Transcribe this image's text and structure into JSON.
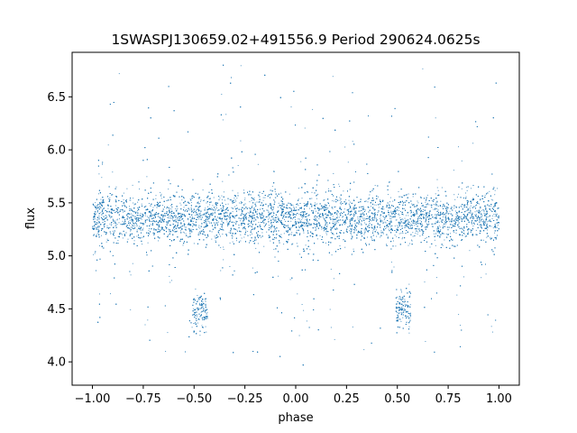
{
  "chart_data": {
    "type": "scatter",
    "title": "1SWASPJ130659.02+491556.9 Period 290624.0625s",
    "xlabel": "phase",
    "ylabel": "flux",
    "xlim": [
      -1.1,
      1.1
    ],
    "ylim": [
      3.78,
      6.92
    ],
    "x_ticks": [
      -1.0,
      -0.75,
      -0.5,
      -0.25,
      0.0,
      0.25,
      0.5,
      0.75,
      1.0
    ],
    "x_tick_labels": [
      "−1.00",
      "−0.75",
      "−0.50",
      "−0.25",
      "0.00",
      "0.25",
      "0.50",
      "0.75",
      "1.00"
    ],
    "y_ticks": [
      4.0,
      4.5,
      5.0,
      5.5,
      6.0,
      6.5
    ],
    "y_tick_labels": [
      "4.0",
      "4.5",
      "5.0",
      "5.5",
      "6.0",
      "6.5"
    ],
    "grid": false,
    "legend": "none",
    "marker_color": "#1f77b4",
    "series": [
      {
        "baseline_flux": 5.35,
        "baseline_spread": 0.12,
        "phase_range": [
          -1.0,
          1.0
        ],
        "dip_centers": [
          -0.47,
          0.53
        ],
        "dip_flux": 4.47,
        "dip_half_width": 0.03,
        "outlier_flux_range": [
          3.95,
          6.8
        ]
      }
    ]
  }
}
